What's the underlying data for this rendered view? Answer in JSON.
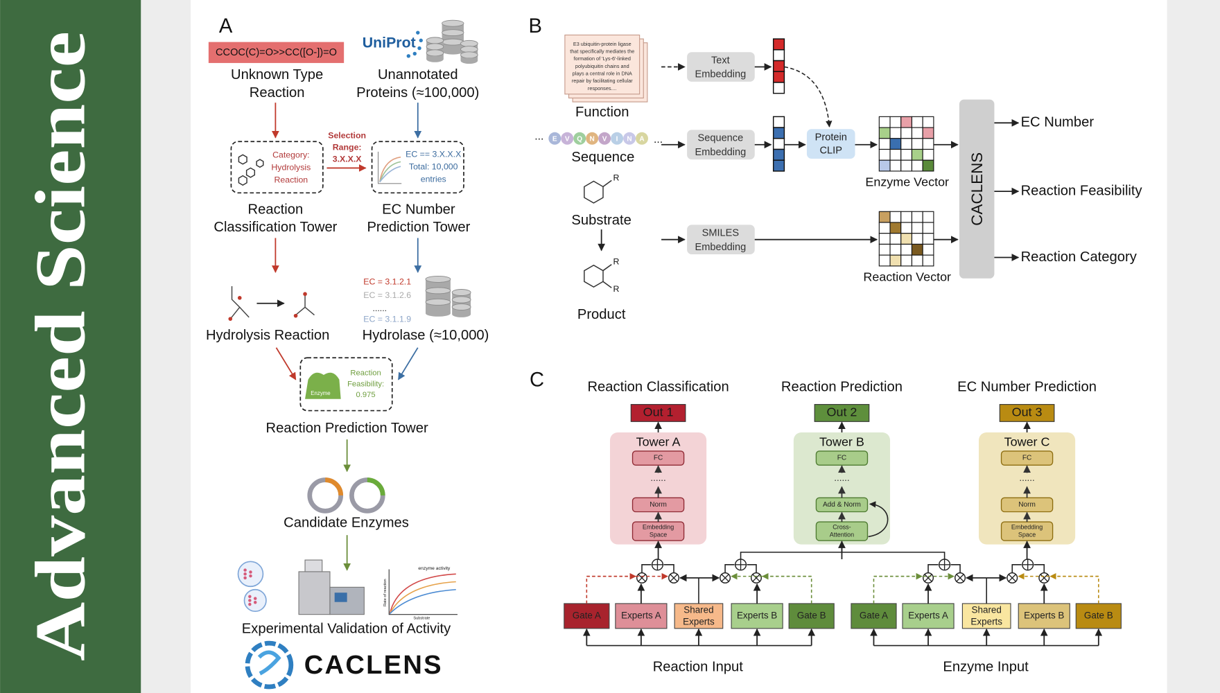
{
  "banner": {
    "title": "Advanced Science"
  },
  "panel_a": {
    "label": "A",
    "smiles": "CCOC(C)=O>>CC([O-])=O",
    "uniprot": "UniProt",
    "unknown_reaction": [
      "Unknown Type",
      "Reaction"
    ],
    "unannotated": [
      "Unannotated",
      "Proteins (≈100,000)"
    ],
    "category_box": [
      "Category:",
      "Hydrolysis",
      "Reaction"
    ],
    "selection": [
      "Selection",
      "Range:",
      "3.X.X.X"
    ],
    "ec_box": [
      "EC == 3.X.X.X",
      "Total: 10,000",
      "entries"
    ],
    "classification_tower": [
      "Reaction",
      "Classification Tower"
    ],
    "ec_tower": [
      "EC Number",
      "Prediction Tower"
    ],
    "ec_list": [
      "EC = 3.1.2.1",
      "EC = 3.1.2.6",
      "......",
      "EC = 3.1.1.9"
    ],
    "hydrolysis": "Hydrolysis Reaction",
    "hydrolase": "Hydrolase (≈10,000)",
    "feasibility_box": {
      "enzyme": "Enzyme",
      "text": [
        "Reaction",
        "Feasibility:",
        "0.975"
      ]
    },
    "prediction_tower": "Reaction Prediction Tower",
    "candidates": "Candidate Enzymes",
    "plot": {
      "title": "enzyme activity",
      "y_label": "Rate of reaction",
      "x_label": "Substrate"
    },
    "validation": "Experimental Validation of Activity",
    "logo": "CACLENS"
  },
  "panel_b": {
    "label": "B",
    "function_text": [
      "E3 ubiquitin-protein ligase",
      "that specifically mediates the",
      "formation of 'Lys-6'-linked",
      "polyubiquitin chains and",
      "plays a central role in DNA",
      "repair by facilitating cellular",
      "responses...."
    ],
    "function": "Function",
    "sequence_residues": [
      "E",
      "V",
      "Q",
      "N",
      "V",
      "I",
      "N",
      "A"
    ],
    "ellipsis": "...",
    "sequence": "Sequence",
    "substrate": "Substrate",
    "product": "Product",
    "r_group": "R",
    "text_embedding": [
      "Text",
      "Embedding"
    ],
    "sequence_embedding": [
      "Sequence",
      "Embedding"
    ],
    "smiles_embedding": [
      "SMILES",
      "Embedding"
    ],
    "protein_clip": [
      "Protein",
      "CLIP"
    ],
    "enzyme_vector": "Enzyme Vector",
    "reaction_vector": "Reaction Vector",
    "model": "CACLENS",
    "outputs": [
      "EC Number",
      "Reaction Feasibility",
      "Reaction Category"
    ]
  },
  "panel_c": {
    "label": "C",
    "towers": [
      {
        "task": "Reaction Classification",
        "out": "Out 1",
        "name": "Tower A",
        "layers": [
          [
            "FC"
          ],
          [
            "......"
          ],
          [
            "Norm"
          ],
          [
            "Embedding",
            "Space"
          ]
        ]
      },
      {
        "task": "Reaction Prediction",
        "out": "Out 2",
        "name": "Tower B",
        "layers": [
          [
            "FC"
          ],
          [
            "......"
          ],
          [
            "Add & Norm"
          ],
          [
            "Cross-",
            "Attention"
          ]
        ]
      },
      {
        "task": "EC Number Prediction",
        "out": "Out 3",
        "name": "Tower C",
        "layers": [
          [
            "FC"
          ],
          [
            "......"
          ],
          [
            "Norm"
          ],
          [
            "Embedding",
            "Space"
          ]
        ]
      }
    ],
    "inputs": [
      {
        "name": "Reaction Input",
        "modules": [
          [
            "Gate A"
          ],
          [
            "Experts A"
          ],
          [
            "Shared",
            "Experts"
          ],
          [
            "Experts B"
          ],
          [
            "Gate B"
          ]
        ]
      },
      {
        "name": "Enzyme Input",
        "modules": [
          [
            "Gate A"
          ],
          [
            "Experts A"
          ],
          [
            "Shared",
            "Experts"
          ],
          [
            "Experts B"
          ],
          [
            "Gate B"
          ]
        ]
      }
    ]
  }
}
